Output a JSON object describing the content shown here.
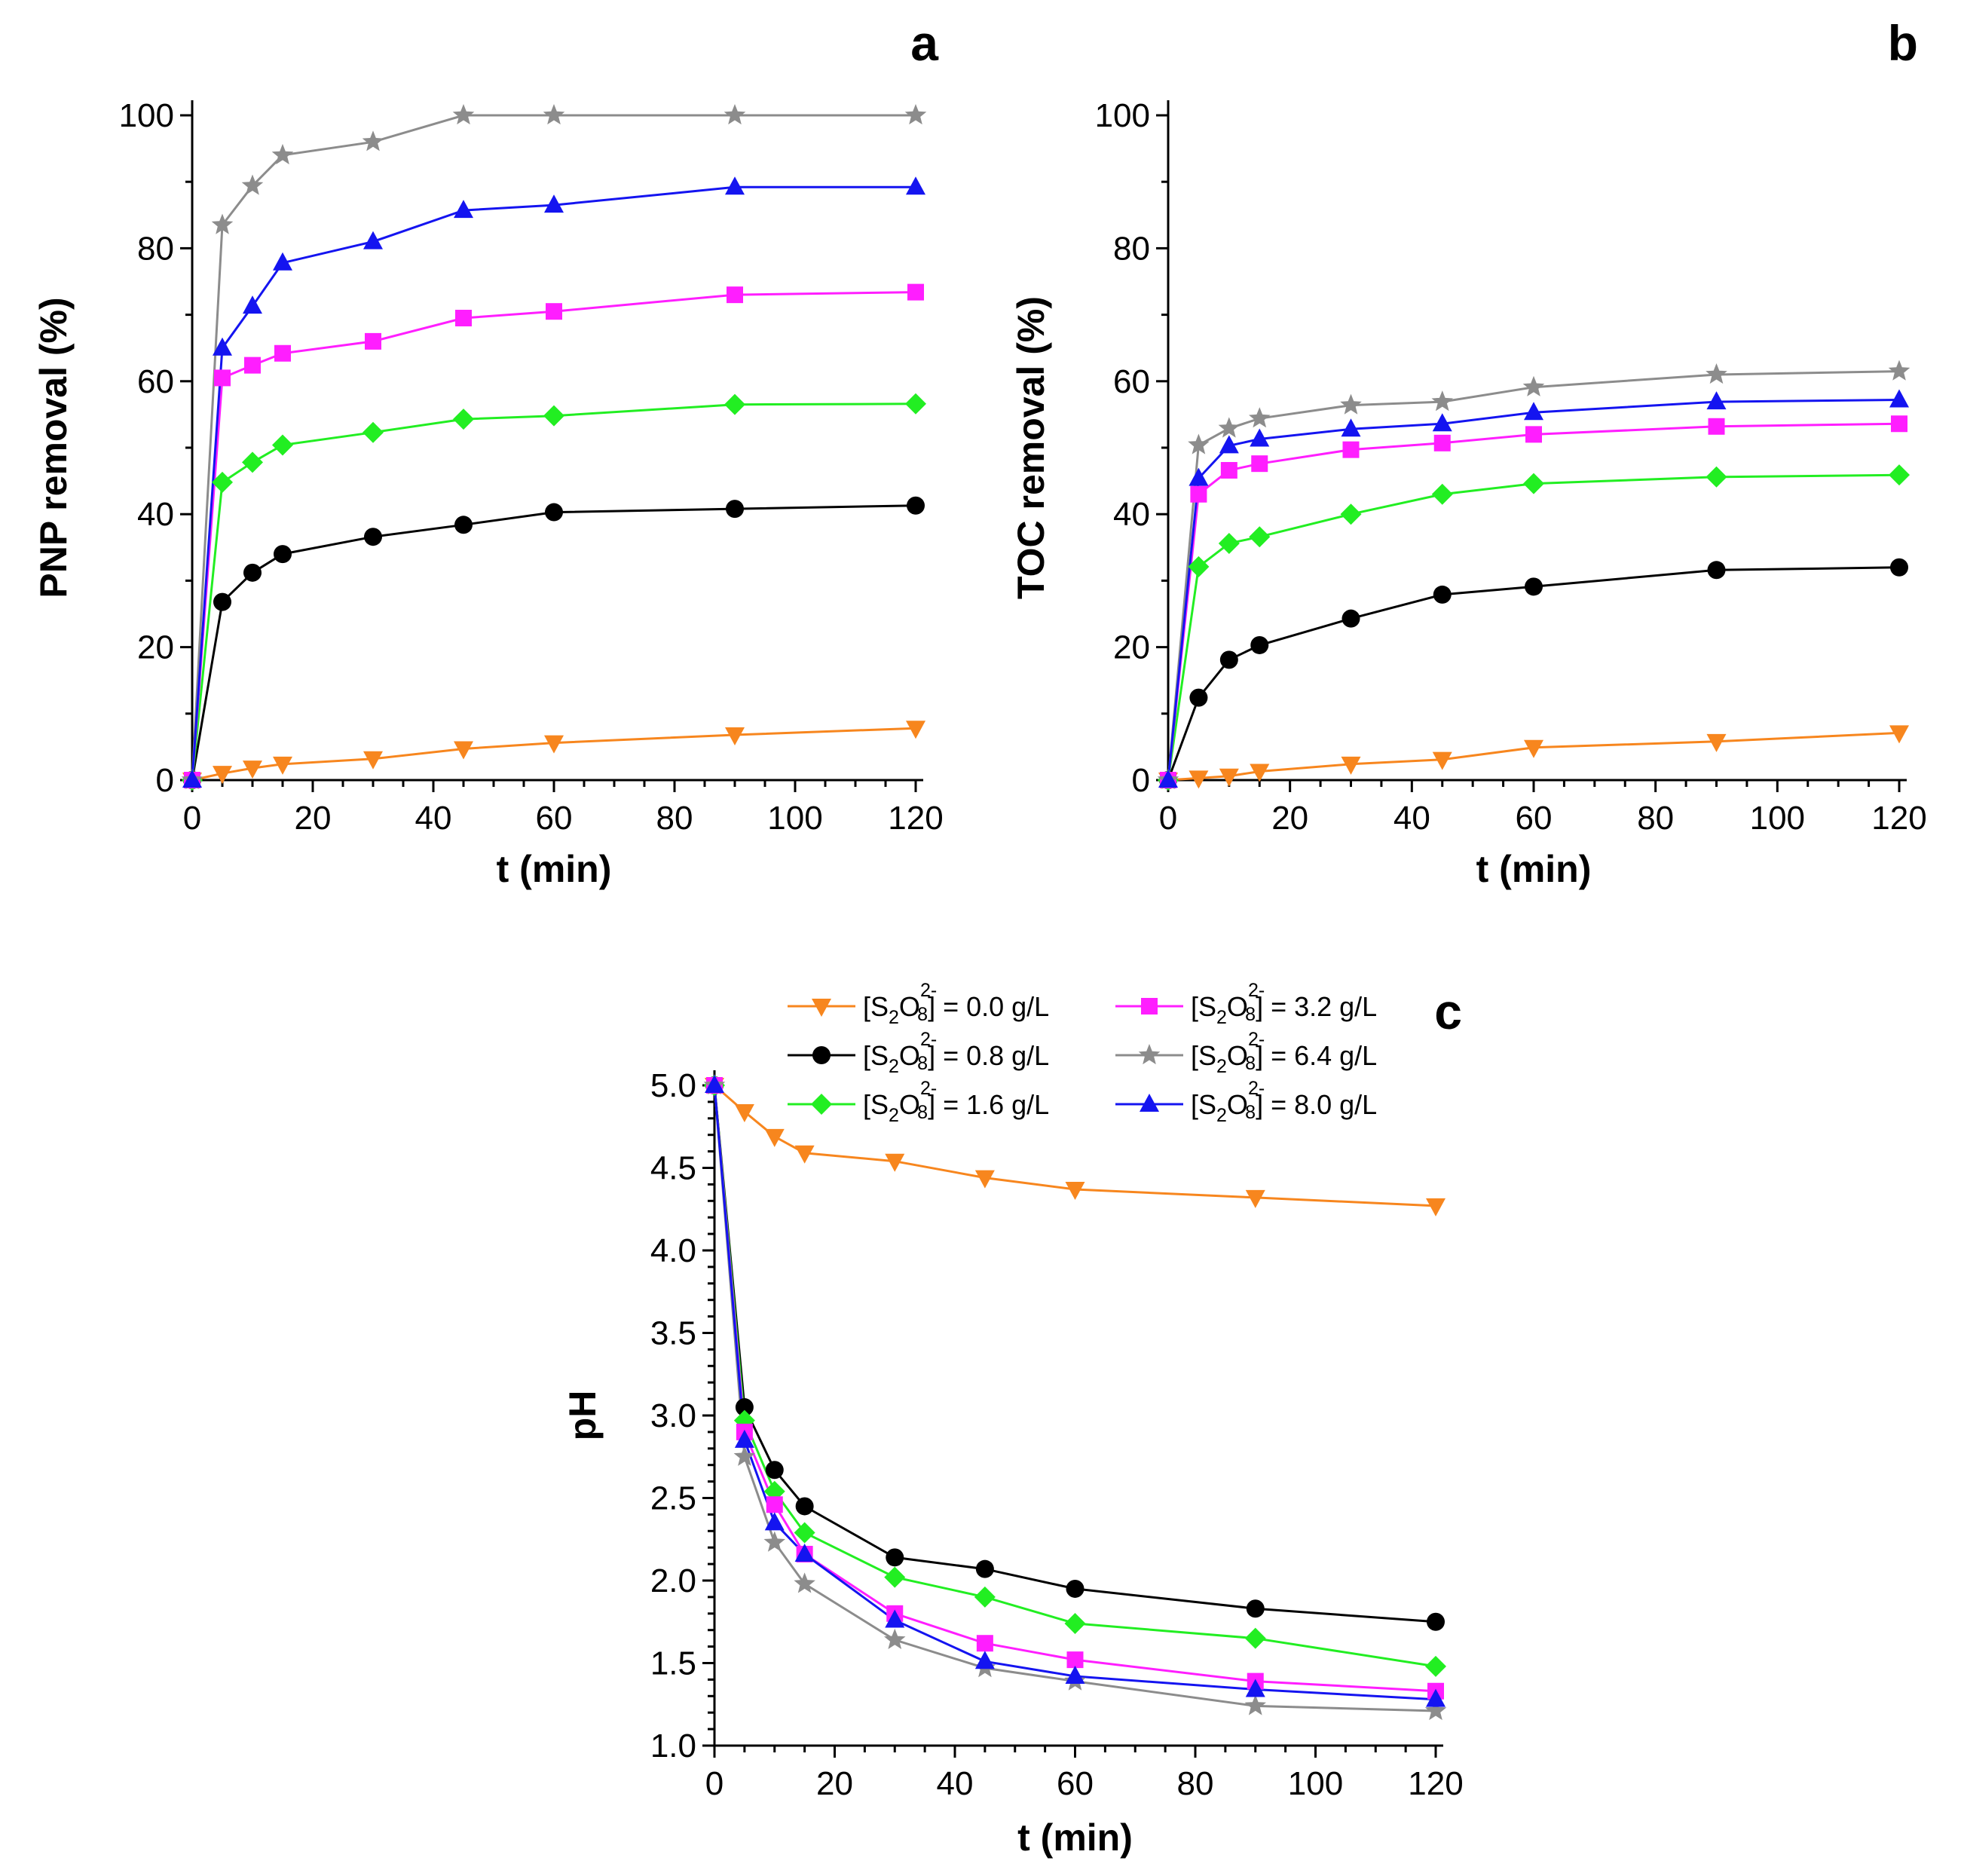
{
  "chart_data": [
    {
      "id": "a",
      "type": "line",
      "panel_label": "a",
      "title": "",
      "xlabel": "t (min)",
      "ylabel": "PNP removal (%)",
      "xlim": [
        0,
        120
      ],
      "ylim": [
        0,
        100
      ],
      "xticks": [
        0,
        20,
        40,
        60,
        80,
        100,
        120
      ],
      "yticks": [
        0,
        20,
        40,
        60,
        80,
        100
      ],
      "x": [
        0,
        5,
        10,
        15,
        30,
        45,
        60,
        90,
        120
      ],
      "series": [
        {
          "key": "s00",
          "name": "[S2O8 2-] = 0.0 g/L",
          "color": "#f7861e",
          "marker": "triangle-down",
          "values": [
            0,
            1.0,
            1.8,
            2.4,
            3.2,
            4.7,
            5.6,
            6.8,
            7.8
          ]
        },
        {
          "key": "s08",
          "name": "[S2O8 2-] = 0.8 g/L",
          "color": "#000000",
          "marker": "circle",
          "values": [
            0,
            26.8,
            31.2,
            34.0,
            36.6,
            38.4,
            40.3,
            40.8,
            41.3
          ]
        },
        {
          "key": "s16",
          "name": "[S2O8 2-] = 1.6 g/L",
          "color": "#22ee22",
          "marker": "diamond",
          "values": [
            0,
            44.8,
            47.8,
            50.4,
            52.3,
            54.3,
            54.8,
            56.5,
            56.6
          ]
        },
        {
          "key": "s32",
          "name": "[S2O8 2-] = 3.2 g/L",
          "color": "#ff1eff",
          "marker": "square",
          "values": [
            0,
            60.5,
            62.4,
            64.2,
            66.0,
            69.5,
            70.5,
            73.0,
            73.4
          ]
        },
        {
          "key": "s64",
          "name": "[S2O8 2-] = 6.4 g/L",
          "color": "#8c8c8c",
          "marker": "star",
          "values": [
            0,
            83.5,
            89.4,
            94.0,
            96.0,
            100.0,
            100.0,
            100.0,
            100.0
          ]
        },
        {
          "key": "s80",
          "name": "[S2O8 2-] = 8.0 g/L",
          "color": "#1414f0",
          "marker": "triangle-up",
          "values": [
            0,
            65.0,
            71.3,
            77.8,
            81.0,
            85.7,
            86.5,
            89.2,
            89.2
          ]
        }
      ]
    },
    {
      "id": "b",
      "type": "line",
      "panel_label": "b",
      "title": "",
      "xlabel": "t (min)",
      "ylabel": "TOC removal (%)",
      "xlim": [
        0,
        120
      ],
      "ylim": [
        0,
        100
      ],
      "xticks": [
        0,
        20,
        40,
        60,
        80,
        100,
        120
      ],
      "yticks": [
        0,
        20,
        40,
        60,
        80,
        100
      ],
      "x": [
        0,
        5,
        10,
        15,
        30,
        45,
        60,
        90,
        120
      ],
      "series": [
        {
          "key": "s00",
          "name": "[S2O8 2-] = 0.0 g/L",
          "color": "#f7861e",
          "marker": "triangle-down",
          "values": [
            0,
            0.3,
            0.6,
            1.3,
            2.4,
            3.1,
            4.9,
            5.8,
            7.1
          ]
        },
        {
          "key": "s08",
          "name": "[S2O8 2-] = 0.8 g/L",
          "color": "#000000",
          "marker": "circle",
          "values": [
            0,
            12.4,
            18.1,
            20.3,
            24.3,
            27.9,
            29.1,
            31.6,
            32.0
          ]
        },
        {
          "key": "s16",
          "name": "[S2O8 2-] = 1.6 g/L",
          "color": "#22ee22",
          "marker": "diamond",
          "values": [
            0,
            32.1,
            35.6,
            36.6,
            40.0,
            43.0,
            44.6,
            45.6,
            45.9
          ]
        },
        {
          "key": "s32",
          "name": "[S2O8 2-] = 3.2 g/L",
          "color": "#ff1eff",
          "marker": "square",
          "values": [
            0,
            43.0,
            46.6,
            47.6,
            49.7,
            50.7,
            52.0,
            53.2,
            53.6
          ]
        },
        {
          "key": "s64",
          "name": "[S2O8 2-] = 6.4 g/L",
          "color": "#8c8c8c",
          "marker": "star",
          "values": [
            0,
            50.4,
            52.9,
            54.4,
            56.4,
            56.9,
            59.1,
            61.0,
            61.5
          ]
        },
        {
          "key": "s80",
          "name": "[S2O8 2-] = 8.0 g/L",
          "color": "#1414f0",
          "marker": "triangle-up",
          "values": [
            0,
            45.4,
            50.3,
            51.3,
            52.8,
            53.6,
            55.3,
            56.9,
            57.2
          ]
        }
      ]
    },
    {
      "id": "c",
      "type": "line",
      "panel_label": "c",
      "title": "",
      "xlabel": "t (min)",
      "ylabel": "pH",
      "xlim": [
        0,
        120
      ],
      "ylim": [
        1.0,
        5.0
      ],
      "xticks": [
        0,
        20,
        40,
        60,
        80,
        100,
        120
      ],
      "yticks": [
        1.0,
        1.5,
        2.0,
        2.5,
        3.0,
        3.5,
        4.0,
        4.5,
        5.0
      ],
      "ytick_decimals": 1,
      "legend_position": "top",
      "x": [
        0,
        5,
        10,
        15,
        30,
        45,
        60,
        90,
        120
      ],
      "series": [
        {
          "key": "s00",
          "name": "[S2O8 2-] = 0.0 g/L",
          "color": "#f7861e",
          "marker": "triangle-down",
          "values": [
            5.0,
            4.84,
            4.69,
            4.59,
            4.54,
            4.44,
            4.37,
            4.32,
            4.27
          ]
        },
        {
          "key": "s08",
          "name": "[S2O8 2-] = 0.8 g/L",
          "color": "#000000",
          "marker": "circle",
          "values": [
            5.0,
            3.05,
            2.67,
            2.45,
            2.14,
            2.07,
            1.95,
            1.83,
            1.75
          ]
        },
        {
          "key": "s16",
          "name": "[S2O8 2-] = 1.6 g/L",
          "color": "#22ee22",
          "marker": "diamond",
          "values": [
            5.0,
            2.97,
            2.54,
            2.29,
            2.02,
            1.9,
            1.74,
            1.65,
            1.48
          ]
        },
        {
          "key": "s32",
          "name": "[S2O8 2-] = 3.2 g/L",
          "color": "#ff1eff",
          "marker": "square",
          "values": [
            5.0,
            2.9,
            2.46,
            2.16,
            1.8,
            1.62,
            1.52,
            1.39,
            1.33
          ]
        },
        {
          "key": "s64",
          "name": "[S2O8 2-] = 6.4 g/L",
          "color": "#8c8c8c",
          "marker": "star",
          "values": [
            5.0,
            2.75,
            2.23,
            1.98,
            1.64,
            1.47,
            1.39,
            1.24,
            1.21
          ]
        },
        {
          "key": "s80",
          "name": "[S2O8 2-] = 8.0 g/L",
          "color": "#1414f0",
          "marker": "triangle-up",
          "values": [
            5.0,
            2.85,
            2.35,
            2.16,
            1.76,
            1.51,
            1.42,
            1.34,
            1.28
          ]
        }
      ]
    }
  ],
  "legend": {
    "items": [
      {
        "key": "s00",
        "prefix": "[S",
        "sub": "2",
        "mid": "O",
        "sup": "2-",
        "sub2": "8",
        "suffix": "] = 0.0 g/L"
      },
      {
        "key": "s08",
        "prefix": "[S",
        "sub": "2",
        "mid": "O",
        "sup": "2-",
        "sub2": "8",
        "suffix": "] = 0.8 g/L"
      },
      {
        "key": "s16",
        "prefix": "[S",
        "sub": "2",
        "mid": "O",
        "sup": "2-",
        "sub2": "8",
        "suffix": "] = 1.6 g/L"
      },
      {
        "key": "s32",
        "prefix": "[S",
        "sub": "2",
        "mid": "O",
        "sup": "2-",
        "sub2": "8",
        "suffix": "] = 3.2 g/L"
      },
      {
        "key": "s64",
        "prefix": "[S",
        "sub": "2",
        "mid": "O",
        "sup": "2-",
        "sub2": "8",
        "suffix": "] = 6.4 g/L"
      },
      {
        "key": "s80",
        "prefix": "[S",
        "sub": "2",
        "mid": "O",
        "sup": "2-",
        "sub2": "8",
        "suffix": "] = 8.0 g/L"
      }
    ]
  }
}
